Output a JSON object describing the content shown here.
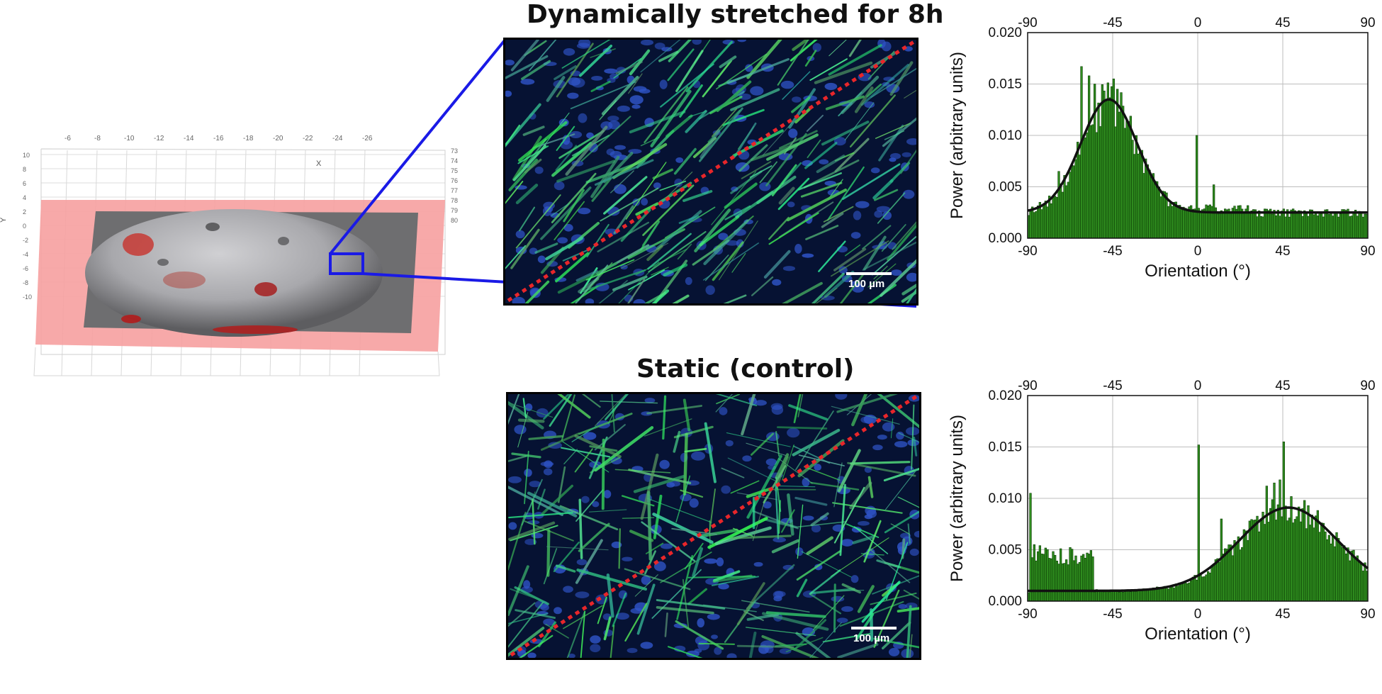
{
  "panels": {
    "stretched": {
      "title": "Dynamically stretched for 8h",
      "scale_bar": "100 µm"
    },
    "static": {
      "title": "Static (control)",
      "scale_bar": "100 µm"
    }
  },
  "colors": {
    "bars": "#2e8b1e",
    "bar_edge": "#0c3d05",
    "fit": "#111111",
    "dashed_line": "#e8262a",
    "box_line": "#1a1ae6",
    "overlay": "#f6a0a0"
  },
  "surface_plot": {
    "x_label": "X",
    "y_label": "Y",
    "x_ticks": [
      "-6",
      "-8",
      "-10",
      "-12",
      "-14",
      "-16",
      "-18",
      "-20",
      "-22",
      "-24",
      "-26"
    ],
    "y_ticks": [
      "10",
      "8",
      "6",
      "4",
      "2",
      "0",
      "-2",
      "-4",
      "-6",
      "-8",
      "-10"
    ],
    "z_ticks": [
      "73",
      "74",
      "75",
      "76",
      "77",
      "78",
      "79",
      "80"
    ]
  },
  "chart_data": [
    {
      "type": "bar",
      "name": "stretched-histogram",
      "xlabel": "Orientation (°)",
      "ylabel": "Power (arbitrary units)",
      "xlim": [
        -90,
        90
      ],
      "ylim": [
        0,
        0.02
      ],
      "x_ticks": [
        -90,
        -45,
        0,
        45,
        90
      ],
      "y_ticks": [
        0.0,
        0.005,
        0.01,
        0.015,
        0.02
      ],
      "y_tick_labels": [
        "0.000",
        "0.005",
        "0.010",
        "0.015",
        "0.020"
      ],
      "grid": true,
      "bin_width": 1,
      "baseline": 0.0025,
      "fit": {
        "type": "gaussian",
        "center": -47,
        "sigma": 15,
        "amplitude": 0.011,
        "offset": 0.0025
      },
      "peaks": [
        [
          -62,
          0.0167
        ],
        [
          -58,
          0.0158
        ],
        [
          -45,
          0.0155
        ],
        [
          -55,
          0.015
        ],
        [
          -43,
          0.0145
        ],
        [
          -1,
          0.01
        ],
        [
          8,
          0.0052
        ],
        [
          -74,
          0.0065
        ]
      ],
      "x_start": -90
    },
    {
      "type": "bar",
      "name": "static-histogram",
      "xlabel": "Orientation (°)",
      "ylabel": "Power (arbitrary units)",
      "xlim": [
        -90,
        90
      ],
      "ylim": [
        0,
        0.02
      ],
      "x_ticks": [
        -90,
        -45,
        0,
        45,
        90
      ],
      "y_ticks": [
        0.0,
        0.005,
        0.01,
        0.015,
        0.02
      ],
      "y_tick_labels": [
        "0.000",
        "0.005",
        "0.010",
        "0.015",
        "0.020"
      ],
      "grid": true,
      "bin_width": 1,
      "fit": {
        "type": "gaussian",
        "center": 48,
        "sigma": 26,
        "amplitude": 0.0081,
        "offset": 0.001
      },
      "peaks": [
        [
          -89,
          0.0105
        ],
        [
          0,
          0.0152
        ],
        [
          45,
          0.0155
        ],
        [
          36,
          0.0112
        ],
        [
          40,
          0.0115
        ],
        [
          43,
          0.0118
        ],
        [
          12,
          0.008
        ],
        [
          -87,
          0.0055
        ],
        [
          -84,
          0.0054
        ]
      ],
      "x_start": -90
    }
  ]
}
